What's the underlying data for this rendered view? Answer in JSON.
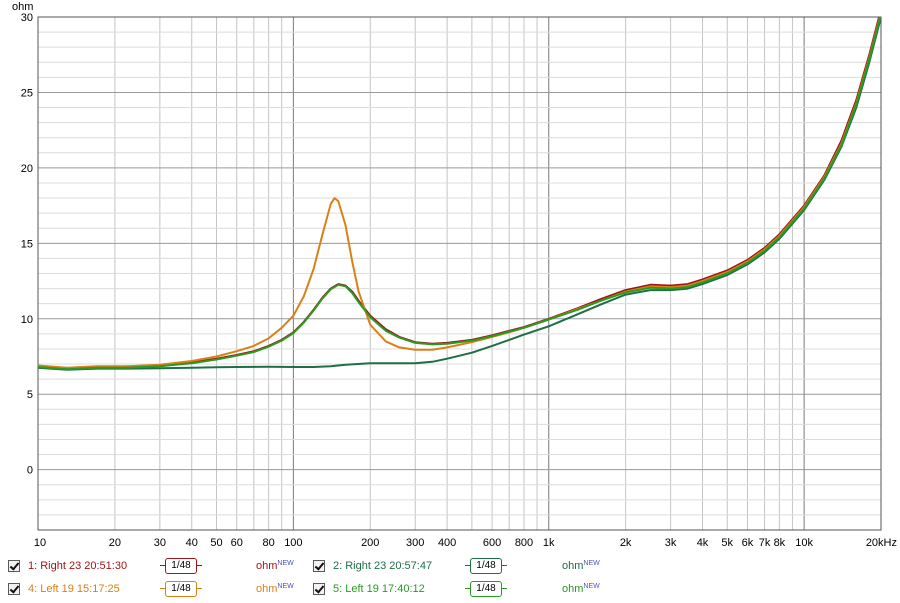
{
  "chart_data": {
    "type": "line",
    "ylabel": "ohm",
    "xscale": "log",
    "xlim": [
      10,
      20000
    ],
    "ylim": [
      -4,
      30
    ],
    "yticks": [
      0,
      5,
      10,
      15,
      20,
      25,
      30
    ],
    "xtick_labels": [
      {
        "value": 10,
        "label": "10"
      },
      {
        "value": 20,
        "label": "20"
      },
      {
        "value": 30,
        "label": "30"
      },
      {
        "value": 40,
        "label": "40"
      },
      {
        "value": 50,
        "label": "50"
      },
      {
        "value": 60,
        "label": "60"
      },
      {
        "value": 80,
        "label": "80"
      },
      {
        "value": 100,
        "label": "100"
      },
      {
        "value": 200,
        "label": "200"
      },
      {
        "value": 300,
        "label": "300"
      },
      {
        "value": 400,
        "label": "400"
      },
      {
        "value": 600,
        "label": "600"
      },
      {
        "value": 800,
        "label": "800"
      },
      {
        "value": 1000,
        "label": "1k"
      },
      {
        "value": 2000,
        "label": "2k"
      },
      {
        "value": 3000,
        "label": "3k"
      },
      {
        "value": 4000,
        "label": "4k"
      },
      {
        "value": 5000,
        "label": "5k"
      },
      {
        "value": 6000,
        "label": "6k"
      },
      {
        "value": 7000,
        "label": "7k"
      },
      {
        "value": 8000,
        "label": "8k"
      },
      {
        "value": 10000,
        "label": "10k"
      },
      {
        "value": 20000,
        "label": "20kHz"
      }
    ],
    "grid": true,
    "series": [
      {
        "name": "1: Right 23 20:51:30",
        "color": "#a01414",
        "points": [
          [
            10,
            6.85
          ],
          [
            13,
            6.7
          ],
          [
            17,
            6.8
          ],
          [
            22,
            6.8
          ],
          [
            30,
            6.9
          ],
          [
            40,
            7.1
          ],
          [
            50,
            7.35
          ],
          [
            60,
            7.6
          ],
          [
            70,
            7.85
          ],
          [
            80,
            8.2
          ],
          [
            90,
            8.6
          ],
          [
            100,
            9.1
          ],
          [
            110,
            9.8
          ],
          [
            120,
            10.6
          ],
          [
            130,
            11.4
          ],
          [
            140,
            12.0
          ],
          [
            150,
            12.3
          ],
          [
            160,
            12.2
          ],
          [
            170,
            11.8
          ],
          [
            180,
            11.2
          ],
          [
            200,
            10.2
          ],
          [
            230,
            9.3
          ],
          [
            260,
            8.8
          ],
          [
            300,
            8.45
          ],
          [
            350,
            8.35
          ],
          [
            400,
            8.4
          ],
          [
            500,
            8.6
          ],
          [
            600,
            8.9
          ],
          [
            700,
            9.2
          ],
          [
            800,
            9.45
          ],
          [
            1000,
            10.0
          ],
          [
            1300,
            10.7
          ],
          [
            1600,
            11.3
          ],
          [
            2000,
            11.9
          ],
          [
            2500,
            12.25
          ],
          [
            3000,
            12.2
          ],
          [
            3500,
            12.3
          ],
          [
            4000,
            12.6
          ],
          [
            5000,
            13.2
          ],
          [
            6000,
            13.9
          ],
          [
            7000,
            14.7
          ],
          [
            8000,
            15.6
          ],
          [
            10000,
            17.5
          ],
          [
            12000,
            19.5
          ],
          [
            14000,
            21.8
          ],
          [
            16000,
            24.5
          ],
          [
            18000,
            27.5
          ],
          [
            20000,
            30.5
          ]
        ]
      },
      {
        "name": "2: Right 23 20:57:47",
        "color": "#1e6e46",
        "points": [
          [
            10,
            6.75
          ],
          [
            13,
            6.62
          ],
          [
            17,
            6.7
          ],
          [
            22,
            6.7
          ],
          [
            30,
            6.72
          ],
          [
            40,
            6.75
          ],
          [
            50,
            6.78
          ],
          [
            60,
            6.8
          ],
          [
            80,
            6.82
          ],
          [
            100,
            6.8
          ],
          [
            120,
            6.8
          ],
          [
            140,
            6.85
          ],
          [
            160,
            6.95
          ],
          [
            200,
            7.05
          ],
          [
            250,
            7.05
          ],
          [
            300,
            7.05
          ],
          [
            350,
            7.15
          ],
          [
            400,
            7.35
          ],
          [
            500,
            7.75
          ],
          [
            600,
            8.2
          ],
          [
            700,
            8.6
          ],
          [
            800,
            8.95
          ],
          [
            1000,
            9.5
          ],
          [
            1300,
            10.3
          ],
          [
            1600,
            10.95
          ],
          [
            2000,
            11.6
          ],
          [
            2500,
            11.9
          ],
          [
            3000,
            11.9
          ],
          [
            3500,
            12.0
          ],
          [
            4000,
            12.3
          ],
          [
            5000,
            12.9
          ],
          [
            6000,
            13.6
          ],
          [
            7000,
            14.4
          ],
          [
            8000,
            15.3
          ],
          [
            10000,
            17.2
          ],
          [
            12000,
            19.2
          ],
          [
            14000,
            21.4
          ],
          [
            16000,
            24.0
          ],
          [
            18000,
            27.0
          ],
          [
            20000,
            30.0
          ]
        ]
      },
      {
        "name": "4: Left 19 15:17:25",
        "color": "#d98018",
        "points": [
          [
            10,
            6.9
          ],
          [
            13,
            6.75
          ],
          [
            17,
            6.85
          ],
          [
            22,
            6.85
          ],
          [
            30,
            6.95
          ],
          [
            40,
            7.2
          ],
          [
            50,
            7.5
          ],
          [
            60,
            7.85
          ],
          [
            70,
            8.2
          ],
          [
            80,
            8.7
          ],
          [
            90,
            9.4
          ],
          [
            100,
            10.2
          ],
          [
            110,
            11.5
          ],
          [
            120,
            13.3
          ],
          [
            130,
            15.6
          ],
          [
            140,
            17.6
          ],
          [
            145,
            18.0
          ],
          [
            150,
            17.8
          ],
          [
            160,
            16.2
          ],
          [
            170,
            13.8
          ],
          [
            180,
            11.8
          ],
          [
            200,
            9.6
          ],
          [
            230,
            8.5
          ],
          [
            260,
            8.1
          ],
          [
            300,
            7.95
          ],
          [
            350,
            7.95
          ],
          [
            400,
            8.1
          ],
          [
            500,
            8.45
          ],
          [
            600,
            8.8
          ],
          [
            700,
            9.1
          ],
          [
            800,
            9.4
          ],
          [
            1000,
            9.95
          ],
          [
            1300,
            10.65
          ],
          [
            1600,
            11.2
          ],
          [
            2000,
            11.8
          ],
          [
            2500,
            12.15
          ],
          [
            3000,
            12.1
          ],
          [
            3500,
            12.2
          ],
          [
            4000,
            12.5
          ],
          [
            5000,
            13.1
          ],
          [
            6000,
            13.8
          ],
          [
            7000,
            14.6
          ],
          [
            8000,
            15.5
          ],
          [
            10000,
            17.4
          ],
          [
            12000,
            19.4
          ],
          [
            14000,
            21.6
          ],
          [
            16000,
            24.3
          ],
          [
            18000,
            27.3
          ],
          [
            20000,
            30.3
          ]
        ]
      },
      {
        "name": "5: Left 19 17:40:12",
        "color": "#2a9a22",
        "points": [
          [
            10,
            6.8
          ],
          [
            13,
            6.65
          ],
          [
            17,
            6.75
          ],
          [
            22,
            6.75
          ],
          [
            30,
            6.85
          ],
          [
            40,
            7.05
          ],
          [
            50,
            7.3
          ],
          [
            60,
            7.55
          ],
          [
            70,
            7.8
          ],
          [
            80,
            8.15
          ],
          [
            90,
            8.55
          ],
          [
            100,
            9.05
          ],
          [
            110,
            9.75
          ],
          [
            120,
            10.55
          ],
          [
            130,
            11.35
          ],
          [
            140,
            11.95
          ],
          [
            150,
            12.25
          ],
          [
            160,
            12.15
          ],
          [
            170,
            11.7
          ],
          [
            180,
            11.1
          ],
          [
            200,
            10.1
          ],
          [
            230,
            9.2
          ],
          [
            260,
            8.75
          ],
          [
            300,
            8.4
          ],
          [
            350,
            8.3
          ],
          [
            400,
            8.35
          ],
          [
            500,
            8.55
          ],
          [
            600,
            8.85
          ],
          [
            700,
            9.15
          ],
          [
            800,
            9.4
          ],
          [
            1000,
            9.95
          ],
          [
            1300,
            10.6
          ],
          [
            1600,
            11.2
          ],
          [
            2000,
            11.75
          ],
          [
            2500,
            12.05
          ],
          [
            3000,
            12.0
          ],
          [
            3500,
            12.1
          ],
          [
            4000,
            12.4
          ],
          [
            5000,
            13.0
          ],
          [
            6000,
            13.7
          ],
          [
            7000,
            14.5
          ],
          [
            8000,
            15.4
          ],
          [
            10000,
            17.3
          ],
          [
            12000,
            19.3
          ],
          [
            14000,
            21.5
          ],
          [
            16000,
            24.2
          ],
          [
            18000,
            27.2
          ],
          [
            20000,
            30.2
          ]
        ]
      }
    ]
  },
  "legend": {
    "entries": [
      {
        "label": "1: Right 23 20:51:30",
        "smoothing": "1/48",
        "unit": "ohm",
        "unit_badge": "NEW",
        "color": "#a01414"
      },
      {
        "label": "2: Right 23 20:57:47",
        "smoothing": "1/48",
        "unit": "ohm",
        "unit_badge": "NEW",
        "color": "#1e6e46"
      },
      {
        "label": "4: Left 19 15:17:25",
        "smoothing": "1/48",
        "unit": "ohm",
        "unit_badge": "NEW",
        "color": "#d98018"
      },
      {
        "label": "5: Left 19 17:40:12",
        "smoothing": "1/48",
        "unit": "ohm",
        "unit_badge": "NEW",
        "color": "#2a9a22"
      }
    ]
  }
}
